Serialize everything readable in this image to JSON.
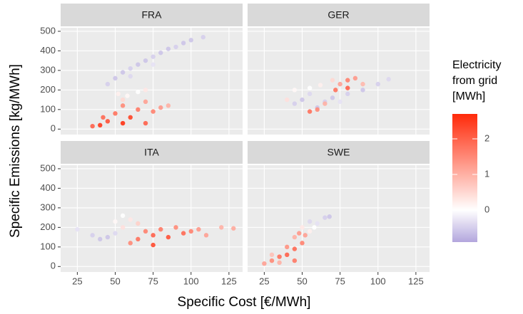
{
  "chart_data": {
    "type": "scatter",
    "x_label": "Specific Cost [€/MWh]",
    "y_label": "Specific Emissions [kg/MWh]",
    "xlim": [
      14,
      134
    ],
    "xticks": [
      25,
      50,
      75,
      100,
      125
    ],
    "ylim": [
      -28,
      518
    ],
    "yticks": [
      0,
      100,
      200,
      300,
      400,
      500
    ],
    "grid": true,
    "legend": {
      "title": [
        "Electricity",
        "from grid",
        "[MWh]"
      ],
      "lim": [
        -0.9,
        2.7
      ],
      "ticks": [
        0,
        1,
        2
      ],
      "mid": 0,
      "colors": [
        "#b3a6dd",
        "#ffffff",
        "#ff2a0a"
      ]
    },
    "facets": [
      {
        "name": "FRA",
        "x": [
          45,
          50,
          55,
          60,
          65,
          70,
          75,
          80,
          85,
          90,
          95,
          100,
          108,
          60,
          75,
          52,
          58,
          65,
          70,
          55,
          35,
          40,
          45,
          50,
          55,
          60,
          65,
          70,
          75,
          80,
          85,
          42,
          55,
          70
        ],
        "y": [
          230,
          260,
          290,
          310,
          330,
          350,
          370,
          390,
          410,
          420,
          440,
          455,
          470,
          270,
          330,
          180,
          170,
          190,
          200,
          150,
          15,
          20,
          40,
          80,
          120,
          60,
          100,
          140,
          90,
          110,
          120,
          60,
          30,
          30
        ],
        "c": [
          -0.5,
          -0.6,
          -0.6,
          -0.5,
          -0.6,
          -0.6,
          -0.5,
          -0.6,
          -0.6,
          -0.5,
          -0.6,
          -0.6,
          -0.5,
          -0.4,
          -0.3,
          0.2,
          0.1,
          0.0,
          0.3,
          0.5,
          2.0,
          2.5,
          2.2,
          1.8,
          1.5,
          2.4,
          1.7,
          1.2,
          1.6,
          1.3,
          1.0,
          1.9,
          2.6,
          2.0
        ]
      },
      {
        "name": "GER",
        "x": [
          45,
          50,
          55,
          60,
          65,
          70,
          80,
          90,
          100,
          107,
          75,
          45,
          55,
          62,
          40,
          70,
          75,
          80,
          85,
          90,
          80,
          60,
          55,
          65,
          72
        ],
        "y": [
          130,
          150,
          180,
          110,
          140,
          160,
          180,
          200,
          230,
          255,
          140,
          200,
          210,
          225,
          150,
          250,
          230,
          250,
          260,
          230,
          210,
          100,
          90,
          130,
          200
        ],
        "c": [
          -0.5,
          -0.6,
          -0.4,
          -0.6,
          -0.5,
          -0.6,
          -0.5,
          -0.6,
          -0.5,
          -0.4,
          -0.3,
          0.1,
          0.0,
          0.2,
          0.4,
          0.5,
          1.2,
          1.6,
          1.3,
          0.9,
          2.0,
          1.5,
          1.8,
          1.0,
          1.8
        ]
      },
      {
        "name": "ITA",
        "x": [
          25,
          35,
          40,
          45,
          50,
          55,
          50,
          60,
          65,
          55,
          60,
          65,
          70,
          75,
          80,
          85,
          90,
          95,
          100,
          105,
          110,
          120,
          128,
          75
        ],
        "y": [
          190,
          160,
          140,
          150,
          170,
          260,
          230,
          240,
          220,
          200,
          120,
          140,
          180,
          160,
          190,
          150,
          200,
          170,
          180,
          190,
          160,
          200,
          195,
          110
        ],
        "c": [
          -0.3,
          -0.5,
          -0.6,
          -0.6,
          -0.4,
          0.0,
          0.1,
          0.3,
          0.6,
          0.4,
          1.5,
          1.8,
          1.6,
          2.0,
          1.7,
          2.2,
          1.5,
          1.9,
          1.6,
          1.3,
          1.2,
          1.0,
          1.1,
          2.3
        ]
      },
      {
        "name": "SWE",
        "x": [
          25,
          30,
          35,
          40,
          45,
          50,
          52,
          45,
          40,
          35,
          30,
          55,
          58,
          60,
          65,
          68,
          55,
          50,
          45,
          48
        ],
        "y": [
          15,
          30,
          50,
          60,
          90,
          120,
          160,
          150,
          100,
          20,
          60,
          180,
          200,
          220,
          250,
          255,
          230,
          200,
          30,
          170
        ],
        "c": [
          1.2,
          1.5,
          1.8,
          2.0,
          1.9,
          1.6,
          1.2,
          1.0,
          1.4,
          1.0,
          0.8,
          0.2,
          0.0,
          -0.3,
          -0.5,
          -0.6,
          -0.4,
          0.3,
          1.7,
          1.3
        ]
      }
    ]
  }
}
